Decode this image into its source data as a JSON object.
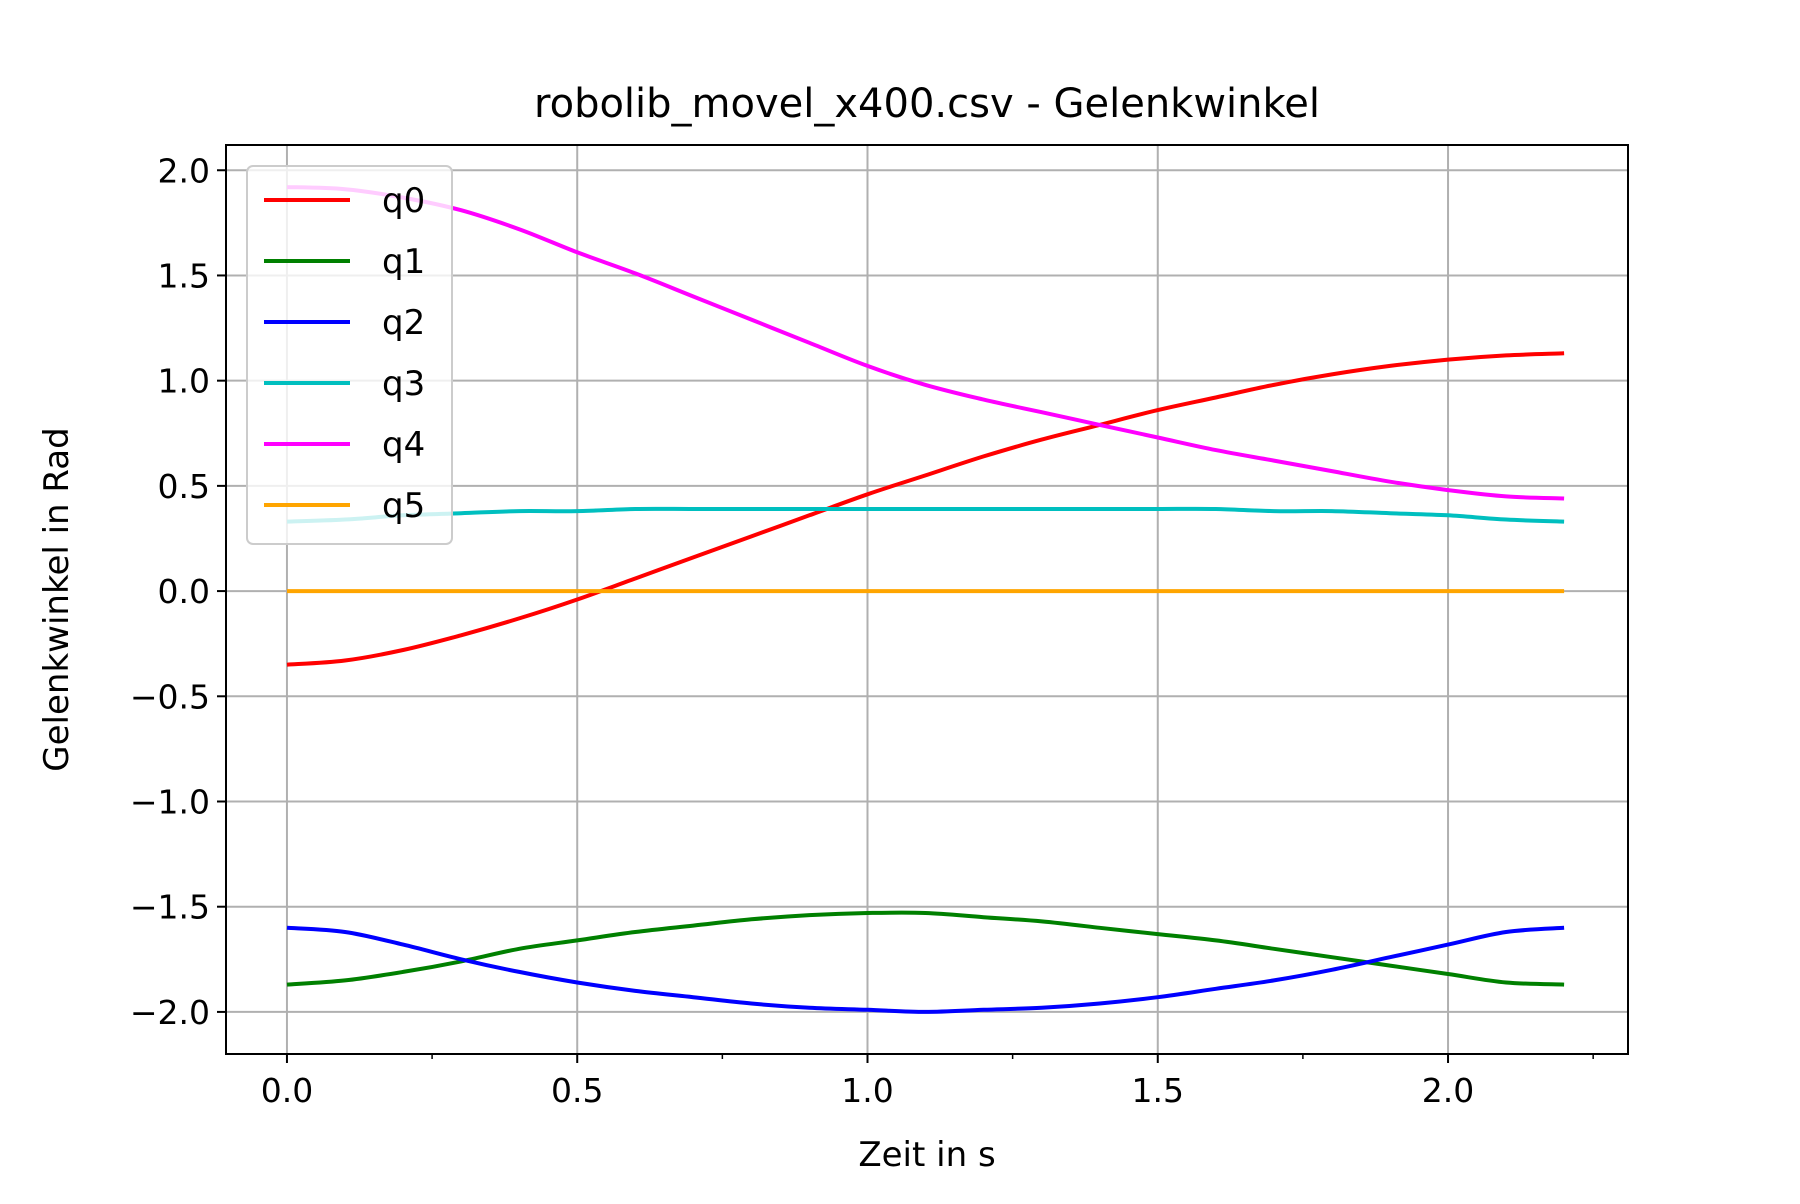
{
  "chart_data": {
    "type": "line",
    "title": "robolib_movel_x400.csv - Gelenkwinkel",
    "xlabel": "Zeit in s",
    "ylabel": "Gelenkwinkel in Rad",
    "xlim": [
      -0.105,
      2.31
    ],
    "ylim": [
      -2.2,
      2.12
    ],
    "x_ticks": [
      0.0,
      0.5,
      1.0,
      1.5,
      2.0
    ],
    "x_tick_labels": [
      "0.0",
      "0.5",
      "1.0",
      "1.5",
      "2.0"
    ],
    "x_minor_ticks": [
      0.25,
      0.75,
      1.25,
      1.75,
      2.25
    ],
    "y_ticks": [
      2.0,
      1.5,
      1.0,
      0.5,
      0.0,
      -0.5,
      -1.0,
      -1.5,
      -2.0
    ],
    "y_tick_labels": [
      "2.0",
      "1.5",
      "1.0",
      "0.5",
      "0.0",
      "−0.5",
      "−1.0",
      "−1.5",
      "−2.0"
    ],
    "grid": true,
    "legend_position": "top-left",
    "x": [
      0.0,
      0.1,
      0.2,
      0.3,
      0.4,
      0.5,
      0.6,
      0.7,
      0.8,
      0.9,
      1.0,
      1.1,
      1.2,
      1.3,
      1.4,
      1.5,
      1.6,
      1.7,
      1.8,
      1.9,
      2.0,
      2.1,
      2.2
    ],
    "series": [
      {
        "name": "q0",
        "color": "#ff0000",
        "values": [
          -0.35,
          -0.33,
          -0.28,
          -0.21,
          -0.13,
          -0.04,
          0.06,
          0.16,
          0.26,
          0.36,
          0.46,
          0.55,
          0.64,
          0.72,
          0.79,
          0.86,
          0.92,
          0.98,
          1.03,
          1.07,
          1.1,
          1.12,
          1.13
        ]
      },
      {
        "name": "q1",
        "color": "#008000",
        "values": [
          -1.87,
          -1.85,
          -1.81,
          -1.76,
          -1.7,
          -1.66,
          -1.62,
          -1.59,
          -1.56,
          -1.54,
          -1.53,
          -1.53,
          -1.55,
          -1.57,
          -1.6,
          -1.63,
          -1.66,
          -1.7,
          -1.74,
          -1.78,
          -1.82,
          -1.86,
          -1.87
        ]
      },
      {
        "name": "q2",
        "color": "#0000ff",
        "values": [
          -1.6,
          -1.62,
          -1.68,
          -1.75,
          -1.81,
          -1.86,
          -1.9,
          -1.93,
          -1.96,
          -1.98,
          -1.99,
          -2.0,
          -1.99,
          -1.98,
          -1.96,
          -1.93,
          -1.89,
          -1.85,
          -1.8,
          -1.74,
          -1.68,
          -1.62,
          -1.6
        ]
      },
      {
        "name": "q3",
        "color": "#00bfbf",
        "values": [
          0.33,
          0.34,
          0.36,
          0.37,
          0.38,
          0.38,
          0.39,
          0.39,
          0.39,
          0.39,
          0.39,
          0.39,
          0.39,
          0.39,
          0.39,
          0.39,
          0.39,
          0.38,
          0.38,
          0.37,
          0.36,
          0.34,
          0.33
        ]
      },
      {
        "name": "q4",
        "color": "#ff00ff",
        "values": [
          1.92,
          1.91,
          1.87,
          1.81,
          1.72,
          1.61,
          1.51,
          1.4,
          1.29,
          1.18,
          1.07,
          0.98,
          0.91,
          0.85,
          0.79,
          0.73,
          0.67,
          0.62,
          0.57,
          0.52,
          0.48,
          0.45,
          0.44
        ]
      },
      {
        "name": "q5",
        "color": "#ffa500",
        "values": [
          0.0,
          0.0,
          0.0,
          0.0,
          0.0,
          0.0,
          0.0,
          0.0,
          0.0,
          0.0,
          0.0,
          0.0,
          0.0,
          0.0,
          0.0,
          0.0,
          0.0,
          0.0,
          0.0,
          0.0,
          0.0,
          0.0,
          0.0
        ]
      }
    ]
  }
}
